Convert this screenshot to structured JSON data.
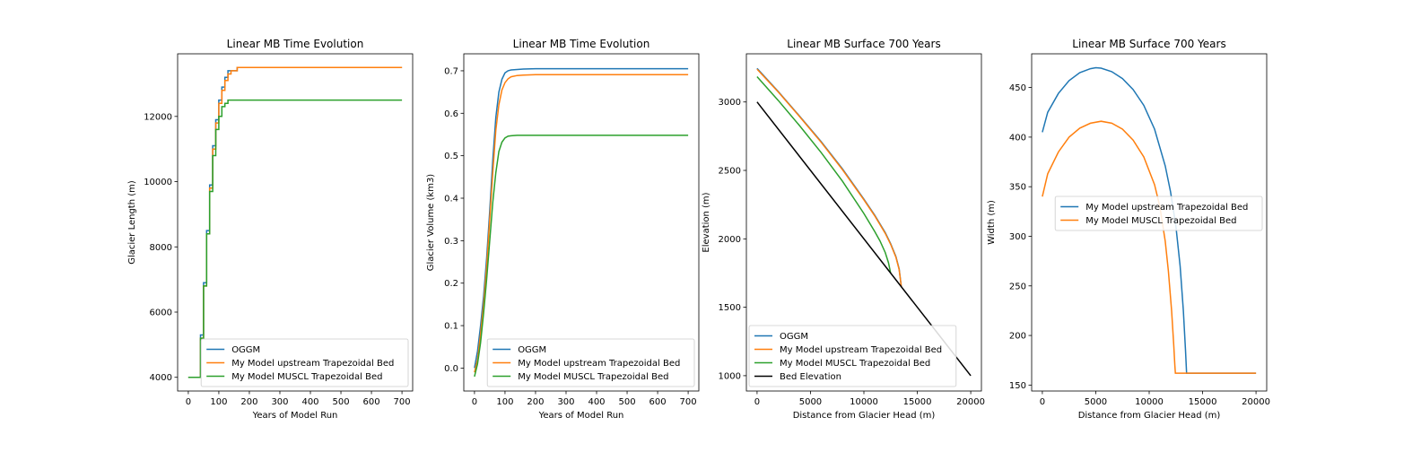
{
  "colors": {
    "blue": "#1f77b4",
    "orange": "#ff7f0e",
    "green": "#2ca02c",
    "black": "#000000"
  },
  "chart_data": [
    {
      "type": "line",
      "title": "Linear MB Time Evolution",
      "xlabel": "Years of Model Run",
      "ylabel": "Glacier Length (m)",
      "xlim": [
        -35,
        735
      ],
      "ylim": [
        3580,
        13920
      ],
      "xticks": [
        0,
        100,
        200,
        300,
        400,
        500,
        600,
        700
      ],
      "yticks": [
        4000,
        6000,
        8000,
        10000,
        12000
      ],
      "legend": "lower-right",
      "series": [
        {
          "name": "OGGM",
          "color": "#1f77b4",
          "step": true,
          "x": [
            0,
            30,
            40,
            50,
            60,
            70,
            80,
            90,
            100,
            110,
            120,
            130,
            140,
            150,
            160,
            700
          ],
          "y": [
            4000,
            4000,
            5300,
            6900,
            8500,
            9900,
            11100,
            11900,
            12500,
            12900,
            13200,
            13400,
            13400,
            13400,
            13500,
            13500
          ]
        },
        {
          "name": "My Model upstream Trapezoidal Bed",
          "color": "#ff7f0e",
          "step": true,
          "x": [
            0,
            30,
            40,
            50,
            60,
            70,
            80,
            90,
            100,
            110,
            120,
            130,
            140,
            150,
            160,
            700
          ],
          "y": [
            4000,
            4000,
            5200,
            6800,
            8400,
            9800,
            11000,
            11800,
            12400,
            12800,
            13100,
            13300,
            13400,
            13400,
            13500,
            13500
          ]
        },
        {
          "name": "My Model MUSCL Trapezoidal Bed",
          "color": "#2ca02c",
          "step": true,
          "x": [
            0,
            30,
            40,
            50,
            60,
            70,
            80,
            90,
            100,
            110,
            120,
            130,
            700
          ],
          "y": [
            4000,
            4000,
            5200,
            6800,
            8400,
            9700,
            10800,
            11600,
            12000,
            12300,
            12400,
            12500,
            12500
          ]
        }
      ]
    },
    {
      "type": "line",
      "title": "Linear MB Time Evolution",
      "xlabel": "Years of Model Run",
      "ylabel": "Glacier Volume (km3)",
      "xlim": [
        -35,
        735
      ],
      "ylim": [
        -0.054,
        0.74
      ],
      "xticks": [
        0,
        100,
        200,
        300,
        400,
        500,
        600,
        700
      ],
      "yticks": [
        0.0,
        0.1,
        0.2,
        0.3,
        0.4,
        0.5,
        0.6,
        0.7
      ],
      "legend": "lower-right",
      "series": [
        {
          "name": "OGGM",
          "color": "#1f77b4",
          "x": [
            0,
            10,
            20,
            30,
            40,
            50,
            60,
            70,
            80,
            90,
            100,
            110,
            120,
            140,
            160,
            200,
            300,
            700
          ],
          "y": [
            0.0,
            0.04,
            0.1,
            0.17,
            0.26,
            0.37,
            0.49,
            0.59,
            0.65,
            0.68,
            0.695,
            0.7,
            0.702,
            0.703,
            0.704,
            0.705,
            0.705,
            0.705
          ]
        },
        {
          "name": "My Model upstream Trapezoidal Bed",
          "color": "#ff7f0e",
          "x": [
            0,
            10,
            20,
            30,
            40,
            50,
            60,
            70,
            80,
            90,
            100,
            110,
            120,
            140,
            160,
            200,
            300,
            700
          ],
          "y": [
            -0.01,
            0.02,
            0.08,
            0.15,
            0.24,
            0.35,
            0.46,
            0.56,
            0.62,
            0.655,
            0.672,
            0.681,
            0.686,
            0.689,
            0.69,
            0.691,
            0.691,
            0.691
          ]
        },
        {
          "name": "My Model MUSCL Trapezoidal Bed",
          "color": "#2ca02c",
          "x": [
            0,
            10,
            20,
            30,
            40,
            50,
            60,
            70,
            80,
            90,
            100,
            110,
            120,
            140,
            160,
            200,
            300,
            700
          ],
          "y": [
            -0.02,
            0.01,
            0.06,
            0.13,
            0.21,
            0.3,
            0.39,
            0.46,
            0.51,
            0.532,
            0.542,
            0.546,
            0.547,
            0.548,
            0.548,
            0.548,
            0.548,
            0.548
          ]
        }
      ]
    },
    {
      "type": "line",
      "title": "Linear MB Surface 700 Years",
      "xlabel": "Distance from Glacier Head (m)",
      "ylabel": "Elevation (m)",
      "xlim": [
        -1000,
        21000
      ],
      "ylim": [
        888,
        3352
      ],
      "xticks": [
        0,
        5000,
        10000,
        15000,
        20000
      ],
      "yticks": [
        1000,
        1500,
        2000,
        2500,
        3000
      ],
      "legend": "lower-left",
      "series": [
        {
          "name": "OGGM",
          "color": "#1f77b4",
          "x": [
            0,
            2000,
            4000,
            6000,
            8000,
            10000,
            11000,
            12000,
            12500,
            13000,
            13300,
            13500
          ],
          "y": [
            3245,
            3075,
            2895,
            2710,
            2510,
            2290,
            2175,
            2045,
            1965,
            1870,
            1780,
            1650
          ]
        },
        {
          "name": "My Model upstream Trapezoidal Bed",
          "color": "#ff7f0e",
          "x": [
            0,
            2000,
            4000,
            6000,
            8000,
            10000,
            11000,
            12000,
            12500,
            13000,
            13300,
            13500
          ],
          "y": [
            3240,
            3072,
            2892,
            2705,
            2505,
            2285,
            2170,
            2040,
            1960,
            1865,
            1775,
            1650
          ]
        },
        {
          "name": "My Model MUSCL Trapezoidal Bed",
          "color": "#2ca02c",
          "x": [
            0,
            2000,
            4000,
            6000,
            8000,
            10000,
            11000,
            11500,
            12000,
            12300,
            12500
          ],
          "y": [
            3185,
            3010,
            2825,
            2630,
            2420,
            2185,
            2055,
            1985,
            1900,
            1825,
            1750
          ]
        },
        {
          "name": "Bed Elevation",
          "color": "#000000",
          "x": [
            0,
            20000
          ],
          "y": [
            3000,
            1000
          ]
        }
      ]
    },
    {
      "type": "line",
      "title": "Linear MB Surface 700 Years",
      "xlabel": "Distance from Glacier Head (m)",
      "ylabel": "Width (m)",
      "xlim": [
        -1000,
        21000
      ],
      "ylim": [
        144,
        484
      ],
      "xticks": [
        0,
        5000,
        10000,
        15000,
        20000
      ],
      "yticks": [
        150,
        200,
        250,
        300,
        350,
        400,
        450
      ],
      "legend": "center-right",
      "series": [
        {
          "name": "My Model upstream Trapezoidal Bed",
          "color": "#1f77b4",
          "x": [
            0,
            500,
            1500,
            2500,
            3500,
            4500,
            5000,
            5500,
            6500,
            7500,
            8500,
            9500,
            10500,
            11500,
            12000,
            12500,
            12900,
            13200,
            13400,
            13500,
            13550,
            13600,
            20000
          ],
          "y": [
            405,
            425,
            444,
            457,
            465,
            469,
            470,
            469.5,
            466,
            459,
            448,
            432,
            408,
            371,
            345,
            310,
            270,
            225,
            185,
            162,
            162,
            162,
            162
          ]
        },
        {
          "name": "My Model MUSCL Trapezoidal Bed",
          "color": "#ff7f0e",
          "x": [
            0,
            500,
            1500,
            2500,
            3500,
            4500,
            5500,
            6500,
            7500,
            8500,
            9500,
            10500,
            11000,
            11500,
            11800,
            12100,
            12300,
            12400,
            12450,
            20000
          ],
          "y": [
            340,
            363,
            385,
            400,
            409,
            414,
            416,
            414,
            408,
            397,
            380,
            352,
            330,
            295,
            265,
            225,
            190,
            170,
            162,
            162
          ]
        }
      ]
    }
  ]
}
